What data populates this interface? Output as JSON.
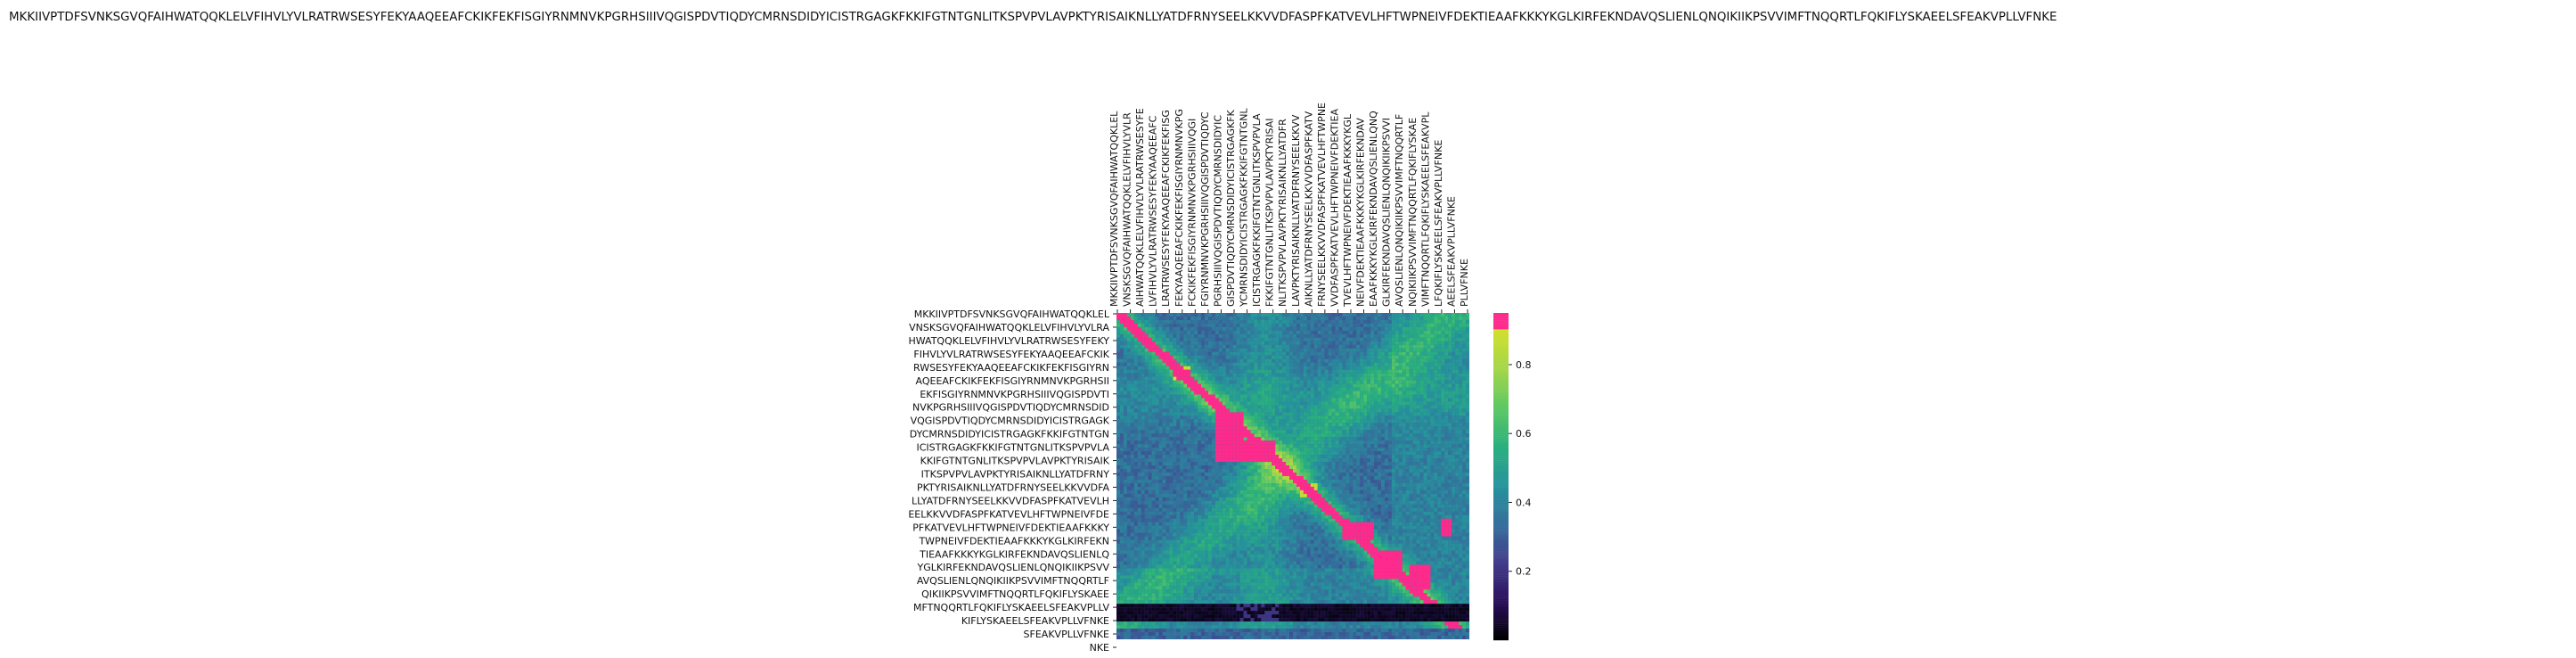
{
  "chart_data": {
    "type": "heatmap",
    "title": "MKKIIVPTDFSVNKSGVQFAIHWATQQKLELVFIHVLYVLRATRWSESYFEKYAAQEEAFCKIKFEKFISGIYRNMNVKPGRHSIIIVQGISPDVTIQDYCMRNSDIDYICISTRGAGKFKKIFGTNTGNLITKSPVPVLAVPKTYRISAIKNLLYATDFRNYSEELKKVVDFASPFKATVEVLHFTWPNEIVFDEKTIEAAFKKKYKGLKIRFEKNDAVQSLIENLQNQIKIIKPSVVIMFTNQQRTLFQKIFLYSKAEELSFEAKVPLLVFNKE",
    "x_tick_labels": [
      "MKKIIVPTDFSVNKSGVQFAIHWATQQKLEL",
      "VNSKSGVQFAIHWATQQKLELVFIHVLYVLR",
      "AIHWATQQKLELVFIHVLYVLRATRWSESYFE",
      "LVFIHVLYVLRATRWSESYFEKYAAQEEAFC",
      "LRATRWSESYFEKYAAQEEAFCKIKFEKFISG",
      "FEKYAAQEEAFCKIKFEKFISGIYRNMNVKPG",
      "FCKIKFEKFISGIYRNMNVKPGRHSIIIVQGI",
      "FGIYRNMNVKPGRHSIIIVQGISPDVTIQDYC",
      "PGRHSIIIVQGISPDVTIQDYCMRNSDIDYIC",
      "GISPDVTIQDYCMRNSDIDYICISTRGAGKFK",
      "YCMRNSDIDYICISTRGAGKFKKIFGTNTGNL",
      "ICISTRGAGKFKKIFGTNTGNLITKSPVPVLA",
      "FKKIFGTNTGNLITKSPVPVLAVPKTYRISAI",
      "NLITKSPVPVLAVPKTYRISAIKNLLYATDFR",
      "LAVPKTYRISAIKNLLYATDFRNYSEELKKVV",
      "AIKNLLYATDFRNYSEELKKVVDFASPFKATV",
      "FRNYSEELKKVVDFASPFKATVEVLHFTWPNE",
      "VVDFASPFKATVEVLHFTWPNEIVFDEKTIEA",
      "TVEVLHFTWPNEIVFDEKTIEAAFKKKYKGL",
      "NEIVFDEKTIEAAFKKKYKGLKIRFEKNDAV",
      "EAAFKKKYKGLKIRFEKNDAVQSLIENLQNQ",
      "GLKIRFEKNDAVQSLIENLQNQIKIIKPSVVI",
      "AVQSLIENLQNQIKIIKPSVVIMFTNQQRTLF",
      "NQIKIIKPSVVIMFTNQQRTLFQKIFLYSKAE",
      "VIMFTNQQRTLFQKIFLYSKAEELSFEAKVPL",
      "LFQKIFLYSKAEELSFEAKVPLLVFNKE",
      "AEELSFEAKVPLLVFNKE",
      "PLLVFNKE"
    ],
    "y_tick_labels": [
      "MKKIIVPTDFSVNKSGVQFAIHWATQQKLEL",
      "VNSKSGVQFAIHWATQQKLELVFIHVLYVLRA",
      "HWATQQKLELVFIHVLYVLRATRWSESYFEKY",
      "FIHVLYVLRATRWSESYFEKYAAQEEAFCKIK",
      "RWSESYFEKYAAQEEAFCKIKFEKFISGIYRN",
      "AQEEAFCKIKFEKFISGIYRNMNVKPGRHSII",
      "EKFISGIYRNMNVKPGRHSIIIVQGISPDVTI",
      "NVKPGRHSIIIVQGISPDVTIQDYCMRNSDID",
      "VQGISPDVTIQDYCMRNSDIDYICISTRGAGK",
      "DYCMRNSDIDYICISTRGAGKFKKIFGTNTGN",
      "ICISTRGAGKFKKIFGTNTGNLITKSPVPVLA",
      "KKIFGTNTGNLITKSPVPVLAVPKTYRISAIK",
      "ITKSPVPVLAVPKTYRISAIKNLLYATDFRNY",
      "PKTYRISAIKNLLYATDFRNYSEELKKVVDFA",
      "LLYATDFRNYSEELKKVVDFASPFKATVEVLH",
      "EELKKVVDFASPFKATVEVLHFTWPNEIVFDE",
      "PFKATVEVLHFTWPNEIVFDEKTIEAAFKKKY",
      "TWPNEIVFDEKTIEAAFKKKYKGLKIRFEKN",
      "TIEAAFKKKYKGLKIRFEKNDAVQSLIENLQ",
      "YGLKIRFEKNDAVQSLIENLQNQIKIIKPSVV",
      "AVQSLIENLQNQIKIIKPSVVIMFTNQQRTLF",
      "QIKIIKPSVVIMFTNQQRTLFQKIFLYSKAEE",
      "MFTNQQRTLFQKIFLYSKAEELSFEAKVPLLV",
      "KIFLYSKAEELSFEAKVPLLVFNKE",
      "SFEAKVPLLVFNKE",
      "NKE"
    ],
    "colorbar": {
      "range": [
        0,
        0.95
      ],
      "ticks": [
        "0.2",
        "0.4",
        "0.6",
        "0.8"
      ],
      "tick_values": [
        0.2,
        0.4,
        0.6,
        0.8
      ],
      "colors": [
        "#000000",
        "#2a0f5c",
        "#433d8c",
        "#356f9c",
        "#26949c",
        "#2ab07d",
        "#5dc862",
        "#a4d64a",
        "#d0e02c",
        "#ff2a8c"
      ]
    },
    "grid": false,
    "legend": "colorbar-right"
  }
}
